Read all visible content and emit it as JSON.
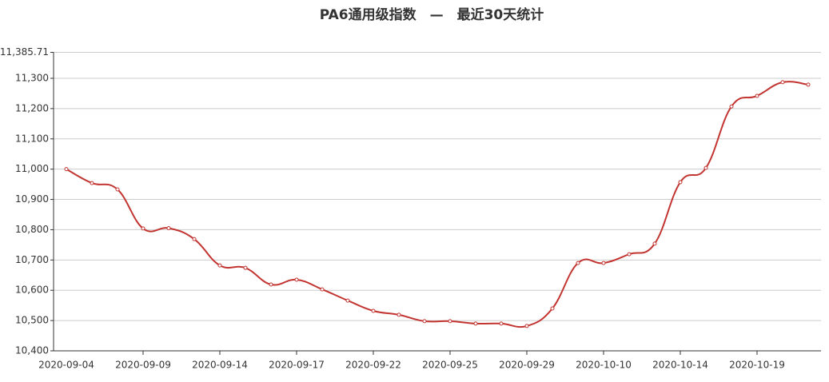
{
  "chart_data": {
    "type": "line",
    "title": "PA6通用级指数　—　最近30天统计",
    "categories": [
      "2020-09-04",
      null,
      null,
      "2020-09-09",
      null,
      null,
      "2020-09-14",
      null,
      null,
      "2020-09-17",
      null,
      null,
      "2020-09-22",
      null,
      null,
      "2020-09-25",
      null,
      null,
      "2020-09-29",
      null,
      null,
      "2020-10-10",
      null,
      null,
      "2020-10-14",
      null,
      null,
      "2020-10-19",
      null,
      null
    ],
    "series": [
      {
        "name": "PA6通用级指数",
        "color": "#c23531",
        "values": [
          11000,
          10954,
          10933,
          10804,
          10805,
          10769,
          10682,
          10674,
          10619,
          10635,
          10603,
          10566,
          10532,
          10519,
          10498,
          10498,
          10490,
          10490,
          10482,
          10540,
          10690,
          10690,
          10719,
          10754,
          10957,
          11004,
          11207,
          11242,
          11287,
          11279
        ]
      }
    ],
    "ylim": [
      10400,
      11385.71
    ],
    "yticks": [
      {
        "value": 10400,
        "label": "10,400"
      },
      {
        "value": 10500,
        "label": "10,500"
      },
      {
        "value": 10600,
        "label": "10,600"
      },
      {
        "value": 10700,
        "label": "10,700"
      },
      {
        "value": 10800,
        "label": "10,800"
      },
      {
        "value": 10900,
        "label": "10,900"
      },
      {
        "value": 11000,
        "label": "11,000"
      },
      {
        "value": 11100,
        "label": "11,100"
      },
      {
        "value": 11200,
        "label": "11,200"
      },
      {
        "value": 11300,
        "label": "11,300"
      },
      {
        "value": 11385.71,
        "label": "11,385.71"
      }
    ],
    "grid": true,
    "smooth": true
  }
}
